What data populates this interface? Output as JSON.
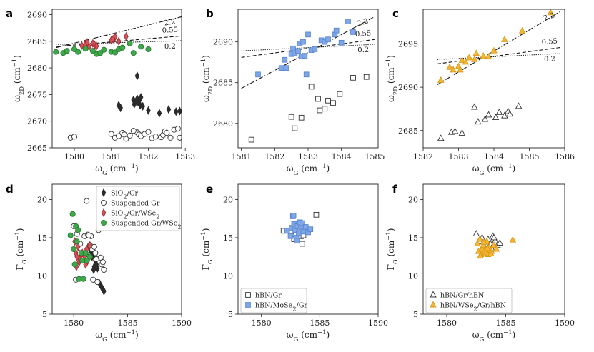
{
  "figure_text": {
    "xlabel": "ωG (cm⁻¹)",
    "ylabel_top": "ω2D (cm⁻¹)",
    "ylabel_bottom": "ΓG (cm⁻¹)"
  },
  "colors": {
    "sio2_gr": "#2b2b2b",
    "susp_gr": "#ffffff",
    "sio2_gr_wse2": "#d6545a",
    "susp_gr_wse2": "#3fa84a",
    "hbn_gr": "#ffffff",
    "hbn_mose2_gr": "#7fa6e6",
    "hbn_gr_hbn": "#ffffff",
    "hbn_wse2_gr_hbn": "#f5b731"
  },
  "chart_data": [
    {
      "panel": "a",
      "type": "scatter",
      "xlim": [
        1579.4,
        1582.9
      ],
      "ylim": [
        2665,
        2691
      ],
      "xticks": [
        1580,
        1581,
        1582,
        1583
      ],
      "yticks": [
        2665,
        2670,
        2675,
        2680,
        2685,
        2690
      ],
      "series": [
        {
          "key": "sio2_gr",
          "marker": "diamond",
          "filled": true,
          "x": [
            1581.2,
            1581.25,
            1581.6,
            1581.65,
            1581.7,
            1581.75,
            1581.8,
            1581.62,
            1581.72,
            1581.78,
            1581.7,
            1581.85,
            1582.0,
            1582.3,
            1582.55,
            1582.75,
            1582.85
          ],
          "y": [
            2673,
            2672.5,
            2674,
            2673.5,
            2674.2,
            2673.8,
            2674.5,
            2673.2,
            2673.6,
            2673.0,
            2678.5,
            2672.8,
            2672.0,
            2671.5,
            2672.2,
            2671.8,
            2671.9
          ]
        },
        {
          "key": "susp_gr",
          "marker": "circle",
          "filled": false,
          "x": [
            1579.9,
            1580.0,
            1581.0,
            1581.1,
            1581.2,
            1581.3,
            1581.4,
            1581.5,
            1581.7,
            1581.75,
            1581.8,
            1581.9,
            1582.0,
            1582.1,
            1582.2,
            1582.35,
            1582.4,
            1582.45,
            1582.5,
            1582.6,
            1582.7,
            1582.8,
            1582.85,
            1581.35,
            1581.6
          ],
          "y": [
            2666.9,
            2667.1,
            2667.6,
            2666.9,
            2667.2,
            2667.8,
            2666.7,
            2667.3,
            2667.9,
            2667.5,
            2667.2,
            2667.6,
            2668.0,
            2666.8,
            2667.1,
            2667.0,
            2667.4,
            2668.1,
            2667.8,
            2666.9,
            2668.4,
            2668.6,
            2666.9,
            2667.5,
            2668.2
          ]
        },
        {
          "key": "sio2_gr_wse2",
          "marker": "diamond",
          "filled": true,
          "x": [
            1580.2,
            1580.3,
            1580.4,
            1580.5,
            1580.55,
            1580.6,
            1581.0,
            1581.1,
            1581.2,
            1581.4,
            1580.35,
            1581.05
          ],
          "y": [
            2684.2,
            2684.5,
            2684.0,
            2684.6,
            2684.3,
            2684.1,
            2685.2,
            2685.8,
            2685.0,
            2685.9,
            2684.8,
            2685.4
          ]
        },
        {
          "key": "susp_gr_wse2",
          "marker": "circle",
          "filled": true,
          "x": [
            1579.5,
            1579.7,
            1579.8,
            1580.0,
            1580.1,
            1580.3,
            1580.5,
            1580.6,
            1580.7,
            1580.8,
            1581.0,
            1581.1,
            1581.2,
            1581.3,
            1581.6,
            1581.8,
            1582.0,
            1581.5
          ],
          "y": [
            2683.0,
            2682.8,
            2683.2,
            2683.5,
            2683.0,
            2683.6,
            2683.2,
            2682.6,
            2682.8,
            2683.4,
            2683.0,
            2682.9,
            2683.5,
            2683.8,
            2682.8,
            2684.0,
            2683.5,
            2684.6
          ]
        }
      ],
      "lines": [
        {
          "label": "2.2",
          "style": "dashdot",
          "x": [
            1579.5,
            1582.9
          ],
          "y": [
            2683.8,
            2689.6
          ]
        },
        {
          "label": "0.55",
          "style": "dashed",
          "x": [
            1579.5,
            1582.9
          ],
          "y": [
            2684.0,
            2686.0
          ]
        },
        {
          "label": "0.2",
          "style": "dotted",
          "x": [
            1579.5,
            1582.9
          ],
          "y": [
            2684.4,
            2685.1
          ]
        }
      ]
    },
    {
      "panel": "b",
      "type": "scatter",
      "xlim": [
        1580.9,
        1585.1
      ],
      "ylim": [
        2677,
        2694
      ],
      "xticks": [
        1581,
        1582,
        1583,
        1584,
        1585
      ],
      "yticks": [
        2680,
        2685,
        2690
      ],
      "series": [
        {
          "key": "hbn_gr",
          "marker": "square",
          "filled": false,
          "x": [
            1581.3,
            1582.5,
            1582.6,
            1582.8,
            1583.1,
            1583.3,
            1583.35,
            1583.5,
            1583.6,
            1583.75,
            1583.95,
            1584.35,
            1584.75
          ],
          "y": [
            2678.0,
            2680.8,
            2679.4,
            2680.7,
            2684.5,
            2683.0,
            2681.6,
            2681.8,
            2682.8,
            2682.5,
            2683.6,
            2685.6,
            2685.7
          ]
        },
        {
          "key": "hbn_mose2_gr",
          "marker": "square",
          "filled": true,
          "x": [
            1581.5,
            1582.2,
            1582.3,
            1582.35,
            1582.5,
            1582.55,
            1582.6,
            1582.7,
            1582.75,
            1582.8,
            1582.85,
            1582.9,
            1582.95,
            1583.0,
            1583.1,
            1583.2,
            1583.4,
            1583.5,
            1583.6,
            1583.8,
            1583.85,
            1584.0,
            1584.2,
            1584.35
          ],
          "y": [
            2686.0,
            2686.8,
            2687.8,
            2686.8,
            2688.5,
            2689.2,
            2688.6,
            2688.9,
            2689.8,
            2688.2,
            2690.0,
            2688.3,
            2686.0,
            2690.9,
            2689.0,
            2689.1,
            2690.2,
            2690.0,
            2690.3,
            2690.9,
            2691.4,
            2689.9,
            2692.5,
            2691.2
          ]
        }
      ],
      "lines": [
        {
          "label": "2.2",
          "style": "dashdot",
          "x": [
            1581.0,
            1585.0
          ],
          "y": [
            2684.3,
            2693.1
          ]
        },
        {
          "label": "0.55",
          "style": "dashed",
          "x": [
            1581.0,
            1585.0
          ],
          "y": [
            2688.1,
            2690.3
          ]
        },
        {
          "label": "0.2",
          "style": "dotted",
          "x": [
            1581.0,
            1585.0
          ],
          "y": [
            2688.9,
            2689.7
          ]
        }
      ]
    },
    {
      "panel": "c",
      "type": "scatter",
      "xlim": [
        1582,
        1586
      ],
      "ylim": [
        2683,
        2699
      ],
      "xticks": [
        1582,
        1583,
        1584,
        1585,
        1586
      ],
      "yticks": [
        2685,
        2690,
        2695
      ],
      "series": [
        {
          "key": "hbn_gr_hbn",
          "marker": "triangle",
          "filled": false,
          "x": [
            1582.5,
            1582.8,
            1582.9,
            1583.1,
            1583.45,
            1583.55,
            1583.75,
            1583.85,
            1584.05,
            1584.15,
            1584.3,
            1584.4,
            1584.45,
            1584.7
          ],
          "y": [
            2684.1,
            2684.8,
            2684.9,
            2684.7,
            2687.7,
            2686.0,
            2686.3,
            2686.8,
            2686.5,
            2687.1,
            2686.7,
            2687.2,
            2686.9,
            2687.8
          ]
        },
        {
          "key": "hbn_wse2_gr_hbn",
          "marker": "triangle",
          "filled": true,
          "x": [
            1582.5,
            1582.75,
            1582.85,
            1583.0,
            1583.05,
            1583.1,
            1583.2,
            1583.3,
            1583.45,
            1583.5,
            1583.7,
            1583.85,
            1584.0,
            1584.3,
            1584.8,
            1585.6
          ],
          "y": [
            2690.8,
            2692.3,
            2692.0,
            2692.4,
            2692.0,
            2693.1,
            2692.9,
            2693.4,
            2693.2,
            2693.9,
            2693.6,
            2693.5,
            2694.2,
            2695.5,
            2696.5,
            2698.6
          ]
        }
      ],
      "lines": [
        {
          "label": "2.2",
          "style": "dashdot",
          "x": [
            1582.4,
            1585.9
          ],
          "y": [
            2690.3,
            2698.8
          ]
        },
        {
          "label": "0.55",
          "style": "dashed",
          "x": [
            1582.4,
            1585.9
          ],
          "y": [
            2692.7,
            2694.6
          ]
        },
        {
          "label": "0.2",
          "style": "dotted",
          "x": [
            1582.4,
            1585.9
          ],
          "y": [
            2693.2,
            2693.9
          ]
        }
      ]
    },
    {
      "panel": "d",
      "type": "scatter",
      "xlim": [
        1578,
        1590
      ],
      "ylim": [
        5,
        22
      ],
      "xticks": [
        1580,
        1585,
        1590
      ],
      "yticks": [
        5,
        10,
        15,
        20
      ],
      "legend": [
        "SiO₂/Gr",
        "Suspended Gr",
        "SiO₂/Gr/WSe₂",
        "Suspended Gr/WSe₂"
      ],
      "series": [
        {
          "key": "sio2_gr",
          "marker": "diamond",
          "filled": true,
          "x": [
            1581.8,
            1582.0,
            1582.1,
            1582.2,
            1582.4,
            1582.6,
            1582.8,
            1581.7,
            1581.9,
            1582.0,
            1581.6,
            1581.85
          ],
          "y": [
            12.8,
            12.0,
            11.5,
            11.0,
            9.0,
            8.5,
            8.0,
            12.5,
            11.2,
            12.3,
            13.2,
            10.8
          ]
        },
        {
          "key": "susp_gr",
          "marker": "circle",
          "filled": false,
          "x": [
            1580.0,
            1580.3,
            1580.5,
            1580.8,
            1581.0,
            1581.2,
            1581.3,
            1581.5,
            1581.6,
            1581.7,
            1581.8,
            1582.0,
            1582.1,
            1582.3,
            1582.5,
            1582.6,
            1582.8,
            1580.2,
            1580.6,
            1581.1,
            1581.4,
            1582.2,
            1582.7,
            1581.9,
            1580.9
          ],
          "y": [
            16.5,
            15.5,
            13.0,
            12.0,
            15.2,
            19.8,
            15.4,
            14.0,
            15.2,
            13.5,
            9.5,
            13.0,
            12.2,
            16.0,
            12.4,
            11.5,
            10.8,
            9.5,
            14.2,
            12.8,
            15.3,
            9.2,
            11.8,
            13.8,
            12.5
          ]
        },
        {
          "key": "sio2_gr_wse2",
          "marker": "diamond",
          "filled": true,
          "x": [
            1580.1,
            1580.2,
            1580.3,
            1580.4,
            1580.5,
            1580.6,
            1580.8,
            1581.0,
            1581.1,
            1581.3,
            1581.5,
            1580.25,
            1580.7,
            1581.2
          ],
          "y": [
            14.5,
            13.0,
            12.5,
            13.8,
            11.8,
            12.2,
            13.0,
            12.6,
            11.5,
            12.0,
            14.0,
            11.2,
            12.8,
            13.5
          ]
        },
        {
          "key": "susp_gr_wse2",
          "marker": "circle",
          "filled": true,
          "x": [
            1579.7,
            1579.9,
            1580.0,
            1580.2,
            1580.3,
            1580.5,
            1580.7,
            1580.9,
            1581.2,
            1581.5,
            1580.1,
            1580.4,
            1580.8,
            1581.1
          ],
          "y": [
            15.3,
            18.1,
            13.5,
            16.5,
            14.5,
            9.6,
            13.0,
            9.6,
            12.0,
            12.5,
            11.5,
            16.0,
            12.0,
            13.0
          ]
        }
      ]
    },
    {
      "panel": "e",
      "type": "scatter",
      "xlim": [
        1578,
        1590
      ],
      "ylim": [
        5,
        22
      ],
      "xticks": [
        1580,
        1585,
        1590
      ],
      "yticks": [
        5,
        10,
        15,
        20
      ],
      "legend": [
        "hBN/Gr",
        "hBN/MoSe₂/Gr"
      ],
      "series": [
        {
          "key": "hbn_gr",
          "marker": "square",
          "filled": false,
          "x": [
            1581.9,
            1582.6,
            1582.8,
            1583.0,
            1583.1,
            1583.3,
            1583.4,
            1583.5,
            1583.7,
            1584.0,
            1584.7,
            1582.9,
            1583.6
          ],
          "y": [
            15.9,
            15.8,
            14.8,
            15.5,
            16.0,
            17.0,
            15.2,
            14.2,
            15.8,
            16.0,
            18.0,
            16.5,
            15.3
          ]
        },
        {
          "key": "hbn_mose2_gr",
          "marker": "square",
          "filled": true,
          "x": [
            1582.2,
            1582.5,
            1582.6,
            1582.7,
            1582.8,
            1582.9,
            1583.0,
            1583.1,
            1583.2,
            1583.3,
            1583.4,
            1583.5,
            1583.6,
            1583.8,
            1584.0,
            1584.2,
            1582.75,
            1583.05
          ],
          "y": [
            15.9,
            15.2,
            16.3,
            17.8,
            16.8,
            16.0,
            15.0,
            16.5,
            15.6,
            17.0,
            16.2,
            16.9,
            15.8,
            16.4,
            15.7,
            16.1,
            17.9,
            14.6
          ]
        }
      ]
    },
    {
      "panel": "f",
      "type": "scatter",
      "xlim": [
        1578,
        1590
      ],
      "ylim": [
        5,
        22
      ],
      "xticks": [
        1580,
        1585,
        1590
      ],
      "yticks": [
        5,
        10,
        15,
        20
      ],
      "legend": [
        "hBN/Gr/hBN",
        "hBN/WSe₂/Gr/hBN"
      ],
      "series": [
        {
          "key": "hbn_gr_hbn",
          "marker": "triangle",
          "filled": false,
          "x": [
            1582.5,
            1582.8,
            1583.0,
            1583.2,
            1583.5,
            1583.7,
            1583.9,
            1584.1,
            1584.3,
            1584.5,
            1583.8,
            1584.0
          ],
          "y": [
            15.5,
            14.5,
            15.0,
            13.8,
            14.8,
            14.2,
            15.2,
            14.6,
            14.0,
            14.3,
            13.6,
            15.0
          ]
        },
        {
          "key": "hbn_wse2_gr_hbn",
          "marker": "triangle",
          "filled": true,
          "x": [
            1582.6,
            1582.7,
            1582.8,
            1582.9,
            1583.0,
            1583.1,
            1583.2,
            1583.3,
            1583.4,
            1583.5,
            1583.6,
            1583.7,
            1583.8,
            1584.0,
            1584.2,
            1585.6,
            1582.85,
            1583.15,
            1583.45,
            1583.75
          ],
          "y": [
            14.2,
            13.2,
            14.8,
            12.8,
            13.5,
            14.0,
            13.2,
            13.0,
            14.5,
            12.8,
            13.8,
            13.4,
            13.2,
            14.0,
            13.5,
            14.7,
            12.6,
            14.4,
            13.6,
            12.9
          ]
        }
      ]
    }
  ]
}
